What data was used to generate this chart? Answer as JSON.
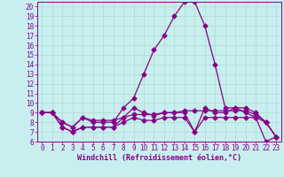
{
  "xlabel": "Windchill (Refroidissement éolien,°C)",
  "background_color": "#c8eef0",
  "line_color": "#880088",
  "grid_color": "#aaddcc",
  "xlim": [
    -0.5,
    23.5
  ],
  "ylim": [
    6,
    20.5
  ],
  "xticks": [
    0,
    1,
    2,
    3,
    4,
    5,
    6,
    7,
    8,
    9,
    10,
    11,
    12,
    13,
    14,
    15,
    16,
    17,
    18,
    19,
    20,
    21,
    22,
    23
  ],
  "yticks": [
    6,
    7,
    8,
    9,
    10,
    11,
    12,
    13,
    14,
    15,
    16,
    17,
    18,
    19,
    20
  ],
  "line1_x": [
    0,
    1,
    2,
    3,
    4,
    5,
    6,
    7,
    8,
    9,
    10,
    11,
    12,
    13,
    14,
    15,
    16,
    17,
    18,
    19,
    20,
    21,
    22,
    23
  ],
  "line1_y": [
    9.0,
    9.0,
    8.0,
    7.5,
    8.5,
    8.0,
    8.0,
    8.0,
    9.5,
    10.5,
    13.0,
    15.5,
    17.0,
    19.0,
    20.5,
    20.5,
    18.0,
    14.0,
    9.5,
    9.5,
    9.0,
    8.5,
    6.0,
    6.5
  ],
  "line2_x": [
    0,
    1,
    2,
    3,
    4,
    5,
    6,
    7,
    8,
    9,
    10,
    11,
    12,
    13,
    14,
    15,
    16,
    17,
    18,
    19,
    20,
    21,
    22,
    23
  ],
  "line2_y": [
    9.0,
    9.0,
    8.0,
    7.5,
    8.5,
    8.2,
    8.2,
    8.2,
    8.5,
    8.8,
    8.8,
    8.8,
    9.0,
    9.0,
    9.2,
    9.2,
    9.2,
    9.2,
    9.2,
    9.2,
    9.2,
    8.8,
    8.0,
    6.5
  ],
  "line3_x": [
    0,
    1,
    2,
    3,
    4,
    5,
    6,
    7,
    8,
    9,
    10,
    11,
    12,
    13,
    14,
    15,
    16,
    17,
    18,
    19,
    20,
    21,
    22,
    23
  ],
  "line3_y": [
    9.0,
    9.0,
    7.5,
    7.0,
    7.5,
    7.5,
    7.5,
    7.5,
    8.0,
    8.5,
    8.2,
    8.2,
    8.5,
    8.5,
    8.5,
    7.0,
    8.5,
    8.5,
    8.5,
    8.5,
    8.5,
    8.5,
    8.0,
    6.5
  ],
  "line4_x": [
    0,
    1,
    2,
    3,
    4,
    5,
    6,
    7,
    8,
    9,
    10,
    11,
    12,
    13,
    14,
    15,
    16,
    17,
    18,
    19,
    20,
    21,
    22,
    23
  ],
  "line4_y": [
    9.0,
    9.0,
    7.5,
    7.0,
    7.5,
    7.5,
    7.5,
    7.5,
    8.5,
    9.5,
    9.0,
    8.7,
    9.0,
    9.0,
    9.0,
    7.0,
    9.5,
    9.0,
    9.0,
    9.5,
    9.5,
    9.0,
    8.0,
    6.5
  ],
  "xlabel_fontsize": 6.0,
  "tick_fontsize": 5.5
}
